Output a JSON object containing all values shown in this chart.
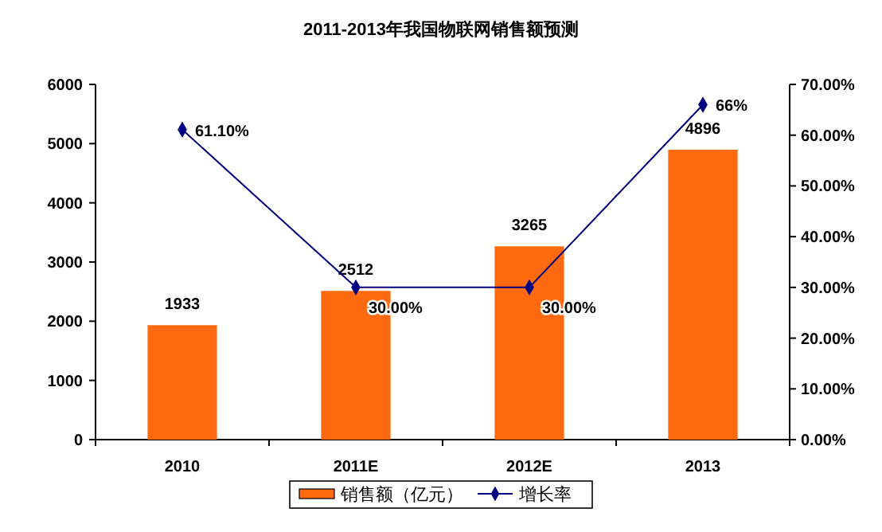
{
  "chart_data": {
    "type": "bar",
    "title": "2011-2013年我国物联网销售额预测",
    "categories": [
      "2010",
      "2011E",
      "2012E",
      "2013"
    ],
    "series": [
      {
        "name": "销售额（亿元）",
        "color": "#ff6a10",
        "values": [
          1933,
          2512,
          3265,
          4896
        ],
        "value_labels": [
          "1933",
          "2512",
          "3265",
          "4896"
        ]
      },
      {
        "name": "增长率",
        "type": "line",
        "axis": "y2",
        "color": "#000080",
        "values": [
          61.1,
          30,
          30,
          66
        ],
        "value_labels": [
          "61.10%",
          "30.00%",
          "30.00%",
          "66%"
        ]
      }
    ],
    "ylim": [
      0,
      6000
    ],
    "yticks": [
      0,
      1000,
      2000,
      3000,
      4000,
      5000,
      6000
    ],
    "y2lim": [
      0,
      70
    ],
    "y2ticks": [
      {
        "value": 0,
        "label": "0.00%"
      },
      {
        "value": 10,
        "label": "10.00%"
      },
      {
        "value": 20,
        "label": "20.00%"
      },
      {
        "value": 30,
        "label": "30.00%"
      },
      {
        "value": 40,
        "label": "40.00%"
      },
      {
        "value": 50,
        "label": "50.00%"
      },
      {
        "value": 60,
        "label": "60.00%"
      },
      {
        "value": 70,
        "label": "70.00%"
      }
    ],
    "marker": "diamond",
    "legend": "bottom",
    "grid": false
  }
}
